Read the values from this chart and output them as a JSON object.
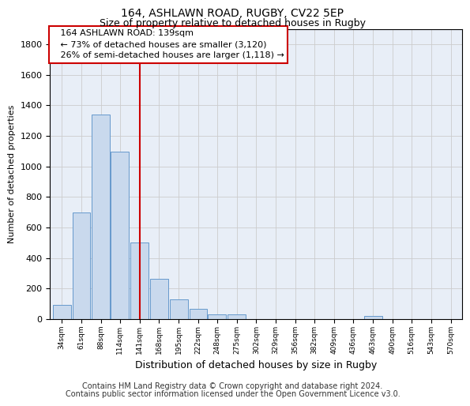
{
  "title1": "164, ASHLAWN ROAD, RUGBY, CV22 5EP",
  "title2": "Size of property relative to detached houses in Rugby",
  "xlabel": "Distribution of detached houses by size in Rugby",
  "ylabel": "Number of detached properties",
  "footer_line1": "Contains HM Land Registry data © Crown copyright and database right 2024.",
  "footer_line2": "Contains public sector information licensed under the Open Government Licence v3.0.",
  "annotation_line1": "164 ASHLAWN ROAD: 139sqm",
  "annotation_line2": "← 73% of detached houses are smaller (3,120)",
  "annotation_line3": "26% of semi-detached houses are larger (1,118) →",
  "bins": [
    34,
    61,
    88,
    114,
    141,
    168,
    195,
    222,
    248,
    275,
    302,
    329,
    356,
    382,
    409,
    436,
    463,
    490,
    516,
    543,
    570
  ],
  "values": [
    95,
    700,
    1340,
    1095,
    500,
    265,
    130,
    65,
    30,
    30,
    0,
    0,
    0,
    0,
    0,
    0,
    20,
    0,
    0,
    0,
    0
  ],
  "bar_color": "#c9d9ed",
  "bar_edge_color": "#6699cc",
  "vline_color": "#cc0000",
  "vline_x": 141,
  "ylim": [
    0,
    1900
  ],
  "yticks": [
    0,
    200,
    400,
    600,
    800,
    1000,
    1200,
    1400,
    1600,
    1800
  ],
  "grid_color": "#cccccc",
  "bg_color": "#e8eef7",
  "title_fontsize": 10,
  "subtitle_fontsize": 9,
  "ylabel_fontsize": 8,
  "xlabel_fontsize": 9,
  "ytick_fontsize": 8,
  "xtick_fontsize": 6.5,
  "ann_fontsize": 8,
  "footer_fontsize": 7
}
